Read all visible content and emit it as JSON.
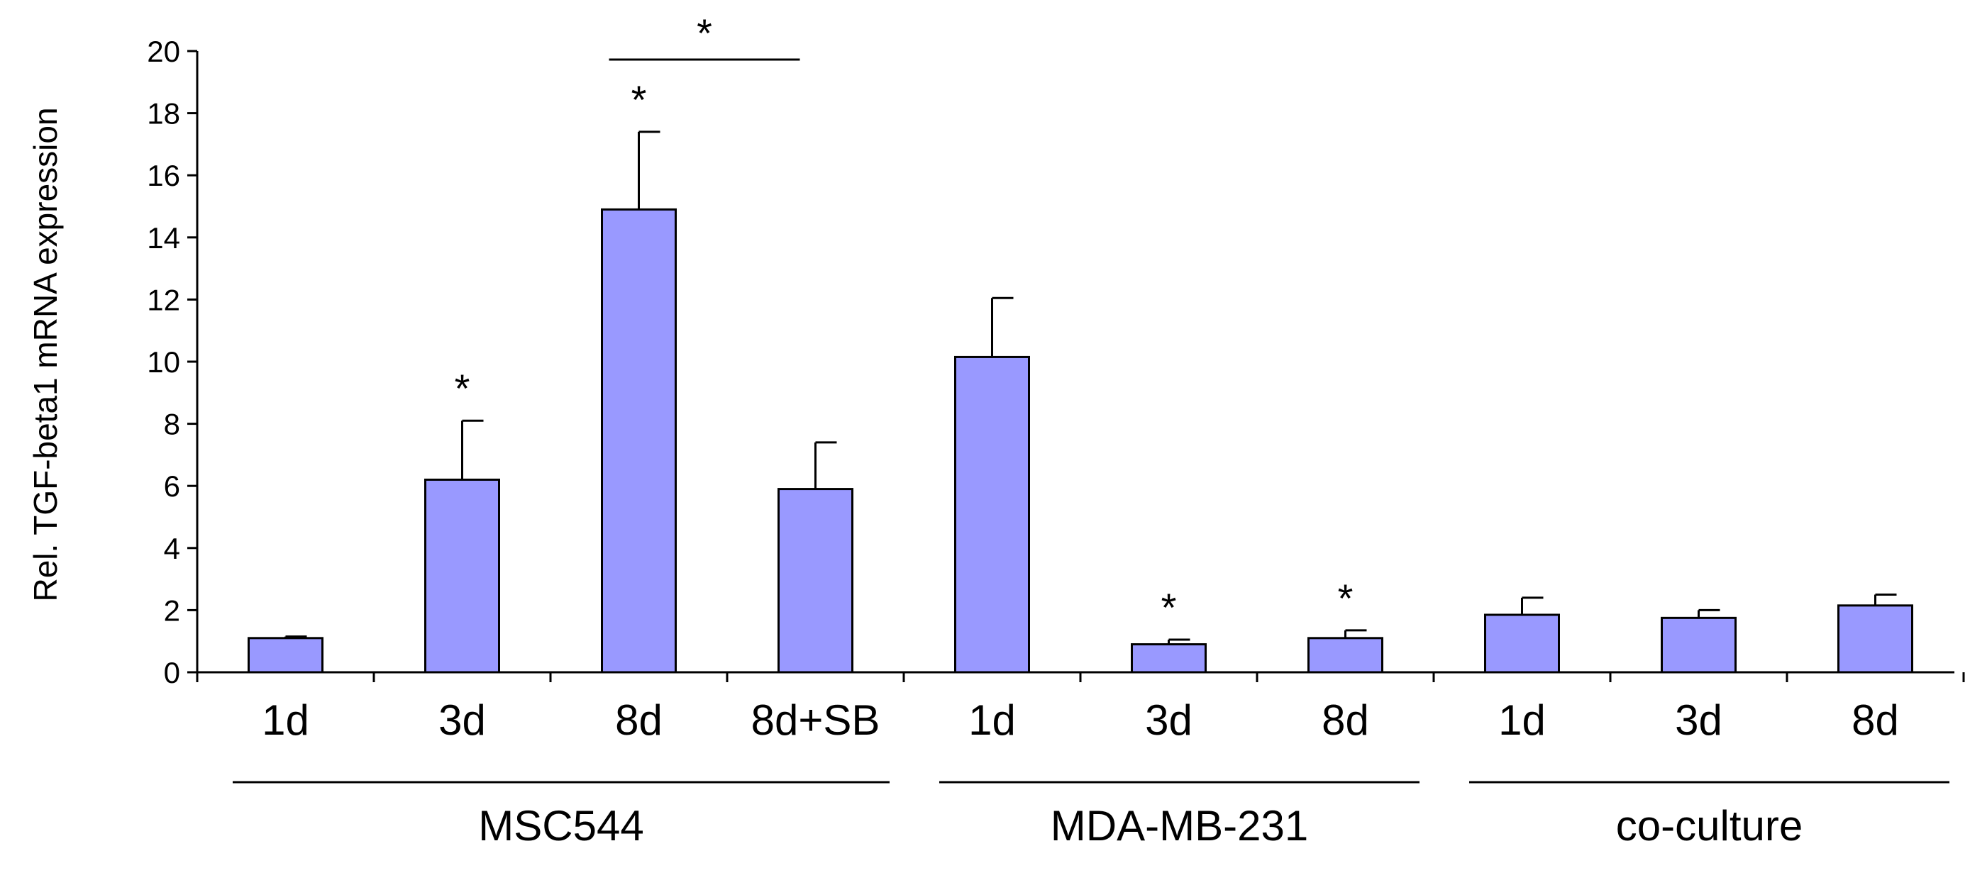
{
  "chart_data": {
    "type": "bar",
    "title": "",
    "xlabel": "",
    "ylabel": "Rel. TGF-beta1  mRNA expression",
    "ylim": [
      0,
      20
    ],
    "yticks": [
      0,
      2,
      4,
      6,
      8,
      10,
      12,
      14,
      16,
      18,
      20
    ],
    "grid": false,
    "legend": "none",
    "bar_color": "#9999ff",
    "bar_edge_color": "#000000",
    "categories": [
      "1d",
      "3d",
      "8d",
      "8d+SB",
      "1d",
      "3d",
      "8d",
      "1d",
      "3d",
      "8d"
    ],
    "groups": [
      {
        "label": "MSC544",
        "start": 0,
        "end": 3
      },
      {
        "label": "MDA-MB-231",
        "start": 4,
        "end": 6
      },
      {
        "label": "co-culture",
        "start": 7,
        "end": 9
      }
    ],
    "values": [
      1.1,
      6.2,
      14.9,
      5.9,
      10.15,
      0.9,
      1.1,
      1.85,
      1.75,
      2.15
    ],
    "errors": [
      0.05,
      1.9,
      2.5,
      1.5,
      1.9,
      0.15,
      0.25,
      0.55,
      0.25,
      0.35
    ],
    "significance": {
      "symbol": "*",
      "bars": [
        1,
        2,
        5,
        6
      ],
      "brackets": [
        {
          "from": 2,
          "to": 3,
          "y": 20
        }
      ]
    }
  }
}
